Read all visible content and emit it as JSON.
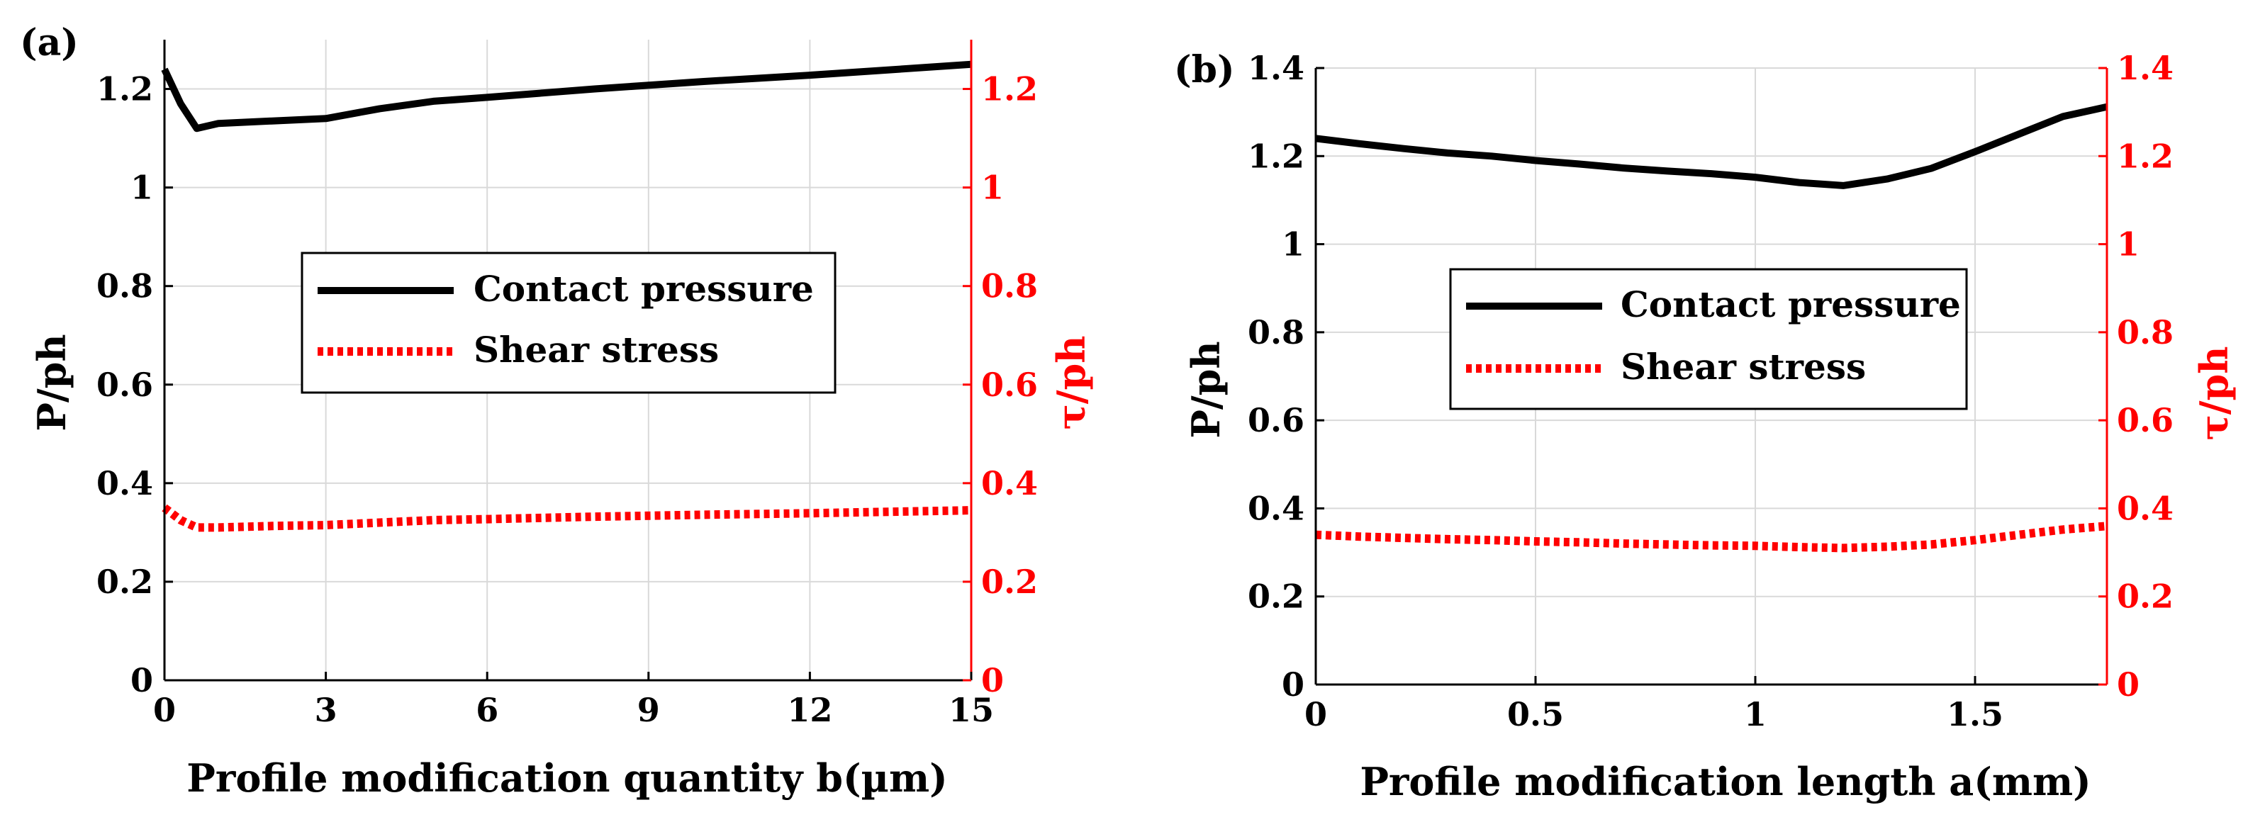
{
  "colors": {
    "pressure": "#000000",
    "shear": "#ff0000",
    "grid": "#d9d9d9",
    "axis": "#000000",
    "right_axis": "#ff0000"
  },
  "chart_data": [
    {
      "type": "line",
      "panel_label": "(a)",
      "xlabel": "Profile modification quantity b(µm)",
      "ylabel": "P/ph",
      "ylabel_right": "τ/ph",
      "xlim": [
        0,
        15
      ],
      "ylim": [
        0,
        1.3
      ],
      "ylim_right": [
        0,
        1.3
      ],
      "x_ticks": [
        0,
        3,
        6,
        9,
        12,
        15
      ],
      "x_tick_labels": [
        "0",
        "3",
        "6",
        "9",
        "12",
        "15"
      ],
      "y_ticks": [
        0,
        0.2,
        0.4,
        0.6,
        0.8,
        1,
        1.2
      ],
      "y_tick_labels": [
        "0",
        "0.2",
        "0.4",
        "0.6",
        "0.8",
        "1",
        "1.2"
      ],
      "y_right_tick_labels": [
        "0",
        "0.2",
        "0.4",
        "0.6",
        "0.8",
        "1",
        "1.2"
      ],
      "legend_position": "center",
      "series": [
        {
          "name": "Contact pressure",
          "axis": "left",
          "style": "solid",
          "x": [
            0,
            0.3,
            0.6,
            1,
            2,
            3,
            4,
            5,
            6,
            8,
            10,
            12,
            15
          ],
          "values": [
            1.24,
            1.17,
            1.12,
            1.13,
            1.135,
            1.14,
            1.16,
            1.175,
            1.183,
            1.2,
            1.215,
            1.228,
            1.25
          ]
        },
        {
          "name": "Shear stress",
          "axis": "right",
          "style": "dotted",
          "x": [
            0,
            0.3,
            0.6,
            1,
            2,
            3,
            4,
            5,
            6,
            8,
            10,
            12,
            15
          ],
          "values": [
            0.35,
            0.325,
            0.31,
            0.31,
            0.313,
            0.315,
            0.32,
            0.325,
            0.327,
            0.332,
            0.336,
            0.339,
            0.345
          ]
        }
      ]
    },
    {
      "type": "line",
      "panel_label": "(b)",
      "xlabel": "Profile modification length a(mm)",
      "ylabel": "P/ph",
      "ylabel_right": "τ/ph",
      "xlim": [
        0,
        1.8
      ],
      "ylim": [
        0,
        1.4
      ],
      "ylim_right": [
        0,
        1.4
      ],
      "x_ticks": [
        0,
        0.5,
        1,
        1.5
      ],
      "x_tick_labels": [
        "0",
        "0.5",
        "1",
        "1.5"
      ],
      "y_ticks": [
        0,
        0.2,
        0.4,
        0.6,
        0.8,
        1,
        1.2,
        1.4
      ],
      "y_tick_labels": [
        "0",
        "0.2",
        "0.4",
        "0.6",
        "0.8",
        "1",
        "1.2",
        "1.4"
      ],
      "y_right_tick_labels": [
        "0",
        "0.2",
        "0.4",
        "0.6",
        "0.8",
        "1",
        "1.2",
        "1.4"
      ],
      "legend_position": "center",
      "series": [
        {
          "name": "Contact pressure",
          "axis": "left",
          "style": "solid",
          "x": [
            0,
            0.1,
            0.2,
            0.3,
            0.4,
            0.5,
            0.6,
            0.7,
            0.8,
            0.9,
            1.0,
            1.1,
            1.2,
            1.3,
            1.4,
            1.5,
            1.6,
            1.7,
            1.8
          ],
          "values": [
            1.24,
            1.228,
            1.217,
            1.207,
            1.2,
            1.19,
            1.182,
            1.173,
            1.166,
            1.16,
            1.152,
            1.14,
            1.133,
            1.148,
            1.172,
            1.21,
            1.25,
            1.29,
            1.312
          ]
        },
        {
          "name": "Shear stress",
          "axis": "right",
          "style": "dotted",
          "x": [
            0,
            0.1,
            0.2,
            0.3,
            0.4,
            0.5,
            0.6,
            0.7,
            0.8,
            0.9,
            1.0,
            1.1,
            1.2,
            1.3,
            1.4,
            1.5,
            1.6,
            1.7,
            1.8
          ],
          "values": [
            0.34,
            0.336,
            0.333,
            0.33,
            0.328,
            0.325,
            0.323,
            0.32,
            0.318,
            0.316,
            0.315,
            0.312,
            0.31,
            0.313,
            0.318,
            0.328,
            0.34,
            0.352,
            0.36
          ]
        }
      ]
    }
  ]
}
